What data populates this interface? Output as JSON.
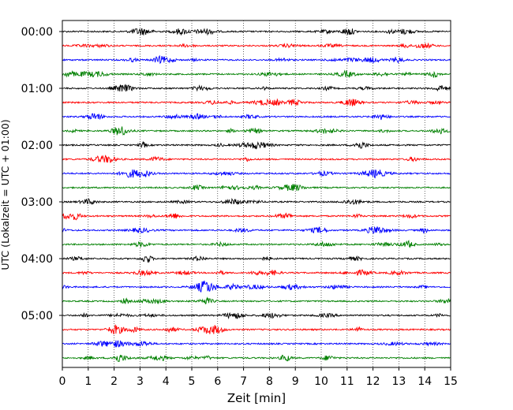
{
  "chart_data": {
    "type": "line",
    "subtype": "helicorder",
    "xlabel": "Zeit  [min]",
    "ylabel": "UTC (Lokalzeit = UTC + 01:00)",
    "xlim": [
      0,
      15
    ],
    "x_ticks": [
      0,
      1,
      2,
      3,
      4,
      5,
      6,
      7,
      8,
      9,
      10,
      11,
      12,
      13,
      14,
      15
    ],
    "y_hour_labels": [
      "00:00",
      "01:00",
      "02:00",
      "03:00",
      "04:00",
      "05:00"
    ],
    "trace_interval_min": 15,
    "trace_count": 24,
    "trace_colors": [
      "#000000",
      "#ff0000",
      "#0000ff",
      "#008000"
    ],
    "vertical_grid": true,
    "grid_style": "dotted"
  }
}
